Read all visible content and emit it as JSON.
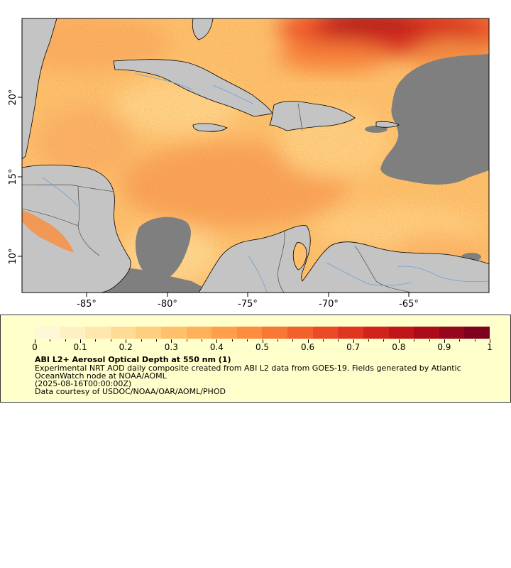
{
  "map": {
    "lon_ticks": [
      "-85°",
      "-80°",
      "-75°",
      "-70°",
      "-65°"
    ],
    "lat_ticks": [
      "20°",
      "15°",
      "10°"
    ],
    "colors": {
      "land": "#c4c4c4",
      "no_data": "#7f7f7f",
      "rivers": "#6fa0d6",
      "borders": "#555555",
      "coast": "#000000"
    }
  },
  "legend": {
    "colorbar_ticks": [
      "0",
      "0.1",
      "0.2",
      "0.3",
      "0.4",
      "0.5",
      "0.6",
      "0.7",
      "0.8",
      "0.9",
      "1"
    ],
    "title": "ABI L2+ Aerosol Optical Depth at 550 nm (1)",
    "description_line1": "Experimental NRT AOD daily composite created from ABI L2 data from GOES-19. Fields generated by Atlantic",
    "description_line2": "OceanWatch node at NOAA/AOML",
    "date": "(2025-08-16T00:00:00Z)",
    "credit": "Data courtesy of USDOC/NOAA/OAR/AOML/PHOD",
    "colorscale": [
      "#fff8d8",
      "#fff0c4",
      "#ffe7ad",
      "#ffdc96",
      "#ffcf80",
      "#ffc06c",
      "#ffb05a",
      "#ff9f4b",
      "#fd8c3e",
      "#f97734",
      "#f2612c",
      "#ea4a26",
      "#e03520",
      "#d2221c",
      "#c01618",
      "#ac0c1a",
      "#96061d",
      "#800020"
    ]
  }
}
